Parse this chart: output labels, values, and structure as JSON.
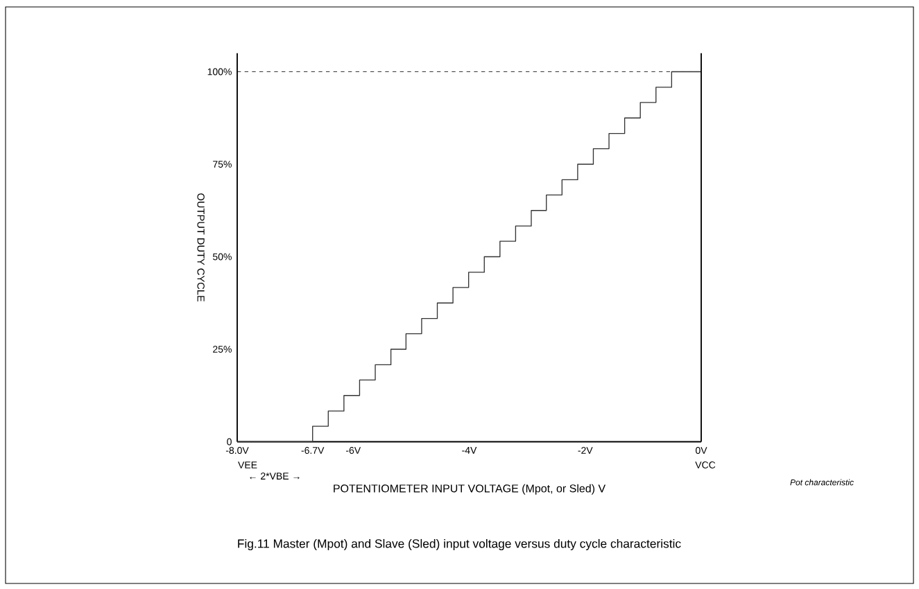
{
  "chart_data": {
    "type": "step",
    "xlabel": "POTENTIOMETER INPUT VOLTAGE (Mpot, or Sled) V",
    "ylabel": "OUTPUT DUTY CYCLE",
    "color": "#333333",
    "x": [
      -8,
      -6.7,
      -6.43,
      -6.16,
      -5.89,
      -5.62,
      -5.35,
      -5.09,
      -4.82,
      -4.55,
      -4.28,
      -4.01,
      -3.74,
      -3.47,
      -3.2,
      -2.93,
      -2.67,
      -2.4,
      -2.13,
      -1.86,
      -1.59,
      -1.32,
      -1.05,
      -0.78,
      -0.51,
      0
    ],
    "values": [
      0,
      4.2,
      8.3,
      12.5,
      16.7,
      20.8,
      25,
      29.2,
      33.3,
      37.5,
      41.7,
      45.8,
      50,
      54.2,
      58.3,
      62.5,
      66.7,
      70.8,
      75,
      79.2,
      83.3,
      87.5,
      91.7,
      95.8,
      100,
      100
    ],
    "xlim": [
      -8,
      0
    ],
    "ylim": [
      0,
      105
    ],
    "xticks": [
      {
        "value": -8,
        "label": "-8.0V"
      },
      {
        "value": -6.7,
        "label": "-6.7V"
      },
      {
        "value": -6,
        "label": "-6V"
      },
      {
        "value": -4,
        "label": "-4V"
      },
      {
        "value": -2,
        "label": "-2V"
      },
      {
        "value": 0,
        "label": "0V"
      }
    ],
    "yticks": [
      0,
      {
        "value": 25,
        "label": "25%"
      },
      {
        "value": 50,
        "label": "50%"
      },
      {
        "value": 75,
        "label": "75%"
      },
      {
        "value": 100,
        "label": "100%"
      }
    ],
    "ref_lines": [
      {
        "axis": "y",
        "value": 100,
        "line_style": "dashed"
      }
    ],
    "annotations": [
      "VEE",
      "VCC",
      "← 2*VBE →",
      "*Pot characteristic*",
      "Fig.11  Master (Mpot) and Slave (Sled) input voltage versus duty cycle characteristic"
    ]
  }
}
